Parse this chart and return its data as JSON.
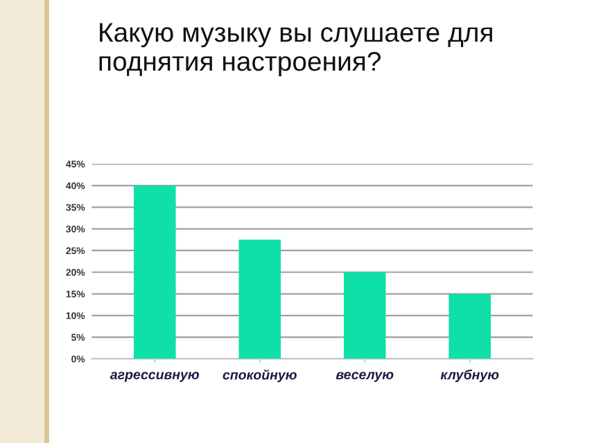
{
  "chart_data": {
    "type": "bar",
    "title": "Какую музыку вы слушаете для поднятия настроения?",
    "categories": [
      "агрессивную",
      "спокойную",
      "веселую",
      "клубную"
    ],
    "values": [
      40,
      27.5,
      20,
      15
    ],
    "color": "#0fe0a8",
    "ylim": [
      0,
      45
    ],
    "yticks": [
      {
        "value": 0,
        "label": "0%"
      },
      {
        "value": 5,
        "label": "5%"
      },
      {
        "value": 10,
        "label": "10%"
      },
      {
        "value": 15,
        "label": "15%"
      },
      {
        "value": 20,
        "label": "20%"
      },
      {
        "value": 25,
        "label": "25%"
      },
      {
        "value": 30,
        "label": "30%"
      },
      {
        "value": 35,
        "label": "35%"
      },
      {
        "value": 40,
        "label": "40%"
      },
      {
        "value": 45,
        "label": "45%"
      }
    ],
    "grid": "y"
  }
}
